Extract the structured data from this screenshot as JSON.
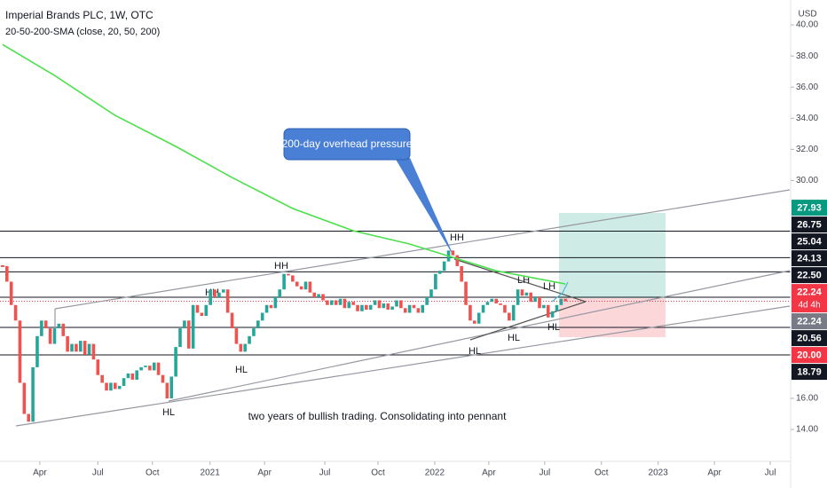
{
  "chart_data": {
    "type": "candlestick",
    "title": "Imperial Brands PLC, 1W, OTC",
    "subtitle": "20-50-200-SMA (close, 20, 50, 200)",
    "currency": "USD",
    "close": [
      24.5,
      23.5,
      22,
      21,
      17,
      15,
      14.5,
      18,
      20,
      21,
      20.5,
      19.5,
      20.5,
      20.8,
      20,
      19,
      19.5,
      19,
      19.7,
      18.8,
      19.5,
      18.5,
      17.5,
      17,
      16.5,
      17,
      16.6,
      16.8,
      17.3,
      17.6,
      17.2,
      17.8,
      18,
      18.1,
      17.8,
      18.3,
      17.5,
      17,
      16,
      17.4,
      19.3,
      20.5,
      21,
      19.2,
      22,
      21.5,
      21.3,
      22,
      23,
      22.5,
      22.8,
      23,
      21.5,
      20.5,
      19.5,
      19,
      19.5,
      20,
      20.5,
      21,
      21.5,
      22,
      21.8,
      22.5,
      23,
      24,
      23.9,
      23.5,
      23.2,
      23,
      23.5,
      22.8,
      22.5,
      22.7,
      22.3,
      22,
      22.3,
      22,
      22.4,
      21.8,
      22.2,
      22,
      21.6,
      22,
      21.7,
      22,
      22.3,
      21.8,
      22.1,
      21.7,
      21.9,
      22.3,
      21.8,
      21.5,
      22,
      21.8,
      21.5,
      22,
      22.5,
      23,
      24,
      24.2,
      24.8,
      25.5,
      25.2,
      24.5,
      23.5,
      22,
      21,
      20.8,
      21.5,
      22,
      22.2,
      22.4,
      22.1,
      22,
      21.5,
      21,
      22,
      23,
      22.6,
      22.8,
      22.2,
      22.5,
      21.8,
      22,
      21.2,
      21.6,
      22,
      22.4,
      22.24
    ],
    "up_color": "#26a69a",
    "down_color": "#ef5350",
    "sma": {
      "color": "#4ce04c",
      "x": [
        0,
        12,
        26,
        40,
        53,
        67,
        81,
        94,
        104,
        114,
        130
      ],
      "values": [
        38.74,
        36.75,
        34.18,
        32.19,
        30.19,
        28.2,
        26.77,
        25.92,
        25.06,
        24.2,
        23.35
      ]
    },
    "xlim": [
      -0.6,
      182
    ],
    "ylim": [
      11.95,
      41.6
    ],
    "yticks": [
      {
        "value": 14,
        "label": "14.00"
      },
      {
        "value": 16,
        "label": "16.00"
      },
      {
        "value": 30,
        "label": "30.00"
      },
      {
        "value": 32,
        "label": "32.00"
      },
      {
        "value": 34,
        "label": "34.00"
      },
      {
        "value": 36,
        "label": "36.00"
      },
      {
        "value": 38,
        "label": "38.00"
      },
      {
        "value": 40,
        "label": "40.00"
      }
    ],
    "xticks": [
      {
        "value": 8.6,
        "label": "Apr"
      },
      {
        "value": 22,
        "label": "Jul"
      },
      {
        "value": 34.6,
        "label": "Oct"
      },
      {
        "value": 47.9,
        "label": "2021"
      },
      {
        "value": 60.5,
        "label": "Apr"
      },
      {
        "value": 74.4,
        "label": "Jul"
      },
      {
        "value": 86.7,
        "label": "Oct"
      },
      {
        "value": 99.8,
        "label": "2022"
      },
      {
        "value": 112.3,
        "label": "Apr"
      },
      {
        "value": 125.2,
        "label": "Jul"
      },
      {
        "value": 138.3,
        "label": "Oct"
      },
      {
        "value": 151.4,
        "label": "2023"
      },
      {
        "value": 164.4,
        "label": "Apr"
      },
      {
        "value": 177.3,
        "label": "Jul"
      }
    ],
    "price_levels": [
      {
        "value": 27.93,
        "label": "27.93",
        "color": "#089981",
        "line": false
      },
      {
        "value": 26.75,
        "label": "26.75",
        "color": "#131722",
        "line": true
      },
      {
        "value": 25.04,
        "label": "25.04",
        "color": "#131722",
        "line": true
      },
      {
        "value": 24.13,
        "label": "24.13",
        "color": "#131722",
        "line": true
      },
      {
        "value": 22.5,
        "label": "22.50",
        "color": "#131722",
        "line": true
      },
      {
        "value": 22.24,
        "label": "22.24",
        "color": "#f23645",
        "line": false,
        "countdown": "4d 4h"
      },
      {
        "value": 22.24,
        "label": "22.24",
        "color": "#787b86",
        "line": false
      },
      {
        "value": 20.56,
        "label": "20.56",
        "color": "#131722",
        "line": true
      },
      {
        "value": 20,
        "label": "20.00",
        "color": "#f23645",
        "line": false
      },
      {
        "value": 18.79,
        "label": "18.79",
        "color": "#131722",
        "line": true
      }
    ],
    "annotations": {
      "pattern_labels": [
        "HH",
        "HH",
        "HH",
        "LH",
        "LH",
        "HL",
        "HL",
        "HL",
        "HL",
        "HL"
      ],
      "callout": "200-day overhead pressure",
      "note": "two years of bullish trading. Consolidating into pennant"
    }
  }
}
